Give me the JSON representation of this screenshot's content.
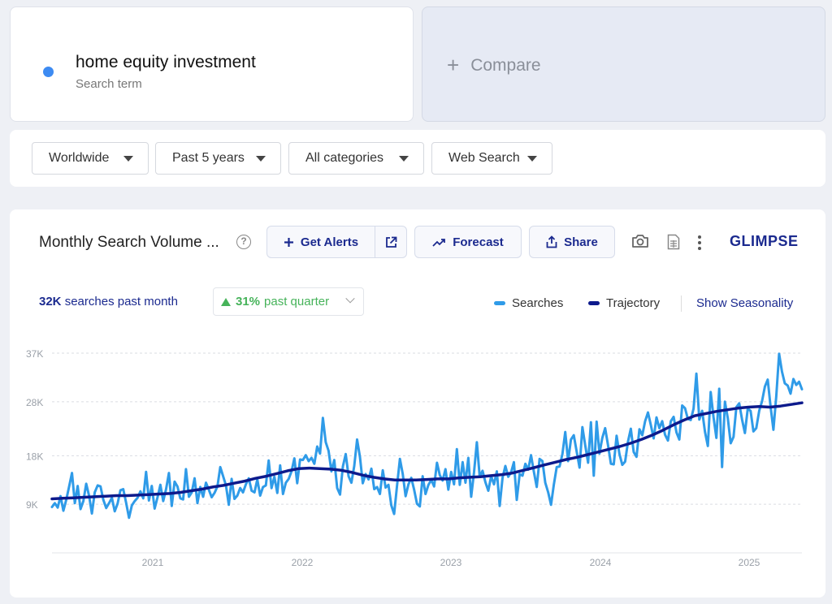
{
  "search_term": {
    "title": "home equity investment",
    "subtitle": "Search term",
    "dot_color": "#3d8bf2"
  },
  "compare": {
    "label": "Compare"
  },
  "filters": [
    {
      "label": "Worldwide"
    },
    {
      "label": "Past 5 years"
    },
    {
      "label": "All categories"
    },
    {
      "label": "Web Search"
    }
  ],
  "chart_header": {
    "title": "Monthly Search Volume ...",
    "help_icon": "question-circle-icon",
    "get_alerts": "Get Alerts",
    "forecast": "Forecast",
    "share": "Share",
    "brand": "GLIMPSE"
  },
  "stats": {
    "searches_value": "32K",
    "searches_label": "searches past month",
    "change_value": "31%",
    "change_label": "past quarter"
  },
  "legend": {
    "searches": "Searches",
    "trajectory": "Trajectory",
    "seasonality": "Show Seasonality",
    "searches_color": "#2f9be8",
    "trajectory_color": "#0d1a8c"
  },
  "chart_data": {
    "type": "line",
    "yticks": [
      "9K",
      "18K",
      "28K",
      "37K"
    ],
    "ytick_values": [
      9000,
      18000,
      28000,
      37000
    ],
    "xticks": [
      "2021",
      "2022",
      "2023",
      "2024",
      "2025"
    ],
    "ylim": [
      0,
      41000
    ],
    "series": [
      {
        "name": "Searches",
        "color": "#2f9be8",
        "values": [
          8500,
          9200,
          8400,
          10500,
          7800,
          9800,
          12300,
          14800,
          9200,
          12400,
          8100,
          9600,
          12800,
          10600,
          7300,
          11200,
          12500,
          12300,
          9800,
          8300,
          9200,
          10200,
          7700,
          9100,
          11600,
          11800,
          9300,
          6500,
          8800,
          9600,
          10200,
          11400,
          10100,
          15000,
          9700,
          12400,
          8200,
          10300,
          12600,
          9600,
          11800,
          14800,
          8700,
          13200,
          12300,
          10100,
          9900,
          15500,
          10400,
          11200,
          13800,
          9200,
          12200,
          10400,
          13000,
          11700,
          10300,
          11100,
          12300,
          15900,
          14200,
          12500,
          8900,
          13700,
          10000,
          10600,
          12000,
          11200,
          12700,
          13800,
          11500,
          11200,
          13600,
          10600,
          12200,
          12500,
          17100,
          12000,
          14100,
          11100,
          16200,
          10900,
          13000,
          13700,
          15100,
          17500,
          12900,
          17300,
          17200,
          18100,
          17000,
          17600,
          16500,
          19700,
          18400,
          25000,
          20500,
          18900,
          15100,
          17200,
          12000,
          10800,
          16000,
          18300,
          14200,
          13000,
          16100,
          21000,
          17800,
          12900,
          14600,
          13600,
          15600,
          11800,
          12200,
          10900,
          15300,
          12100,
          12600,
          8800,
          7200,
          12500,
          17400,
          14600,
          10500,
          12700,
          13900,
          11700,
          9100,
          8600,
          14200,
          10900,
          12600,
          13500,
          12300,
          16700,
          14400,
          13400,
          15500,
          11700,
          15000,
          12700,
          19200,
          12600,
          16800,
          13000,
          17600,
          10400,
          14900,
          20500,
          14100,
          15200,
          13100,
          11500,
          14200,
          12700,
          15100,
          8700,
          13900,
          16100,
          14100,
          14900,
          16800,
          9800,
          14600,
          14300,
          16500,
          15400,
          18100,
          15000,
          12200,
          17400,
          17000,
          13000,
          11200,
          8900,
          12700,
          15900,
          16000,
          18300,
          22400,
          17000,
          21000,
          21800,
          18800,
          15800,
          23300,
          19900,
          16700,
          24200,
          14300,
          24300,
          18400,
          21300,
          23100,
          19900,
          16500,
          16400,
          21700,
          18300,
          16300,
          16900,
          20600,
          23000,
          18700,
          17800,
          22900,
          21800,
          24400,
          26000,
          23700,
          21200,
          25100,
          23100,
          24400,
          21900,
          20800,
          24400,
          25200,
          22300,
          21000,
          27300,
          26800,
          24800,
          24600,
          26700,
          33200,
          24700,
          26300,
          22400,
          19800,
          29800,
          25100,
          21300,
          30400,
          15900,
          28000,
          24900,
          20300,
          21500,
          27000,
          27700,
          24700,
          22200,
          26700,
          26300,
          22500,
          23100,
          26300,
          28100,
          30800,
          32100,
          27100,
          22800,
          29000,
          36900,
          33600,
          31400,
          31000,
          29500,
          32200,
          31100,
          31700,
          30300
        ],
        "months_per_point": "weekly"
      },
      {
        "name": "Trajectory",
        "color": "#0d1a8c",
        "x_ticks_years": [
          2021,
          2022,
          2023,
          2024,
          2025
        ],
        "values": [
          10000,
          10100,
          10200,
          10300,
          10400,
          10500,
          10600,
          10600,
          10700,
          10800,
          10900,
          11000,
          11200,
          11500,
          11800,
          12200,
          12500,
          12900,
          13300,
          13800,
          14200,
          14700,
          15200,
          15600,
          15700,
          15600,
          15500,
          15300,
          14900,
          14400,
          14000,
          13700,
          13500,
          13500,
          13500,
          13600,
          13700,
          13700,
          13900,
          14000,
          14100,
          14300,
          14500,
          14800,
          15300,
          15800,
          16300,
          16800,
          17300,
          17700,
          18200,
          18700,
          19200,
          19700,
          20300,
          21000,
          21800,
          22700,
          23700,
          24600,
          25400,
          25800,
          26200,
          26500,
          26800,
          27000,
          27100,
          27000,
          27200,
          27500,
          27800
        ]
      }
    ]
  }
}
